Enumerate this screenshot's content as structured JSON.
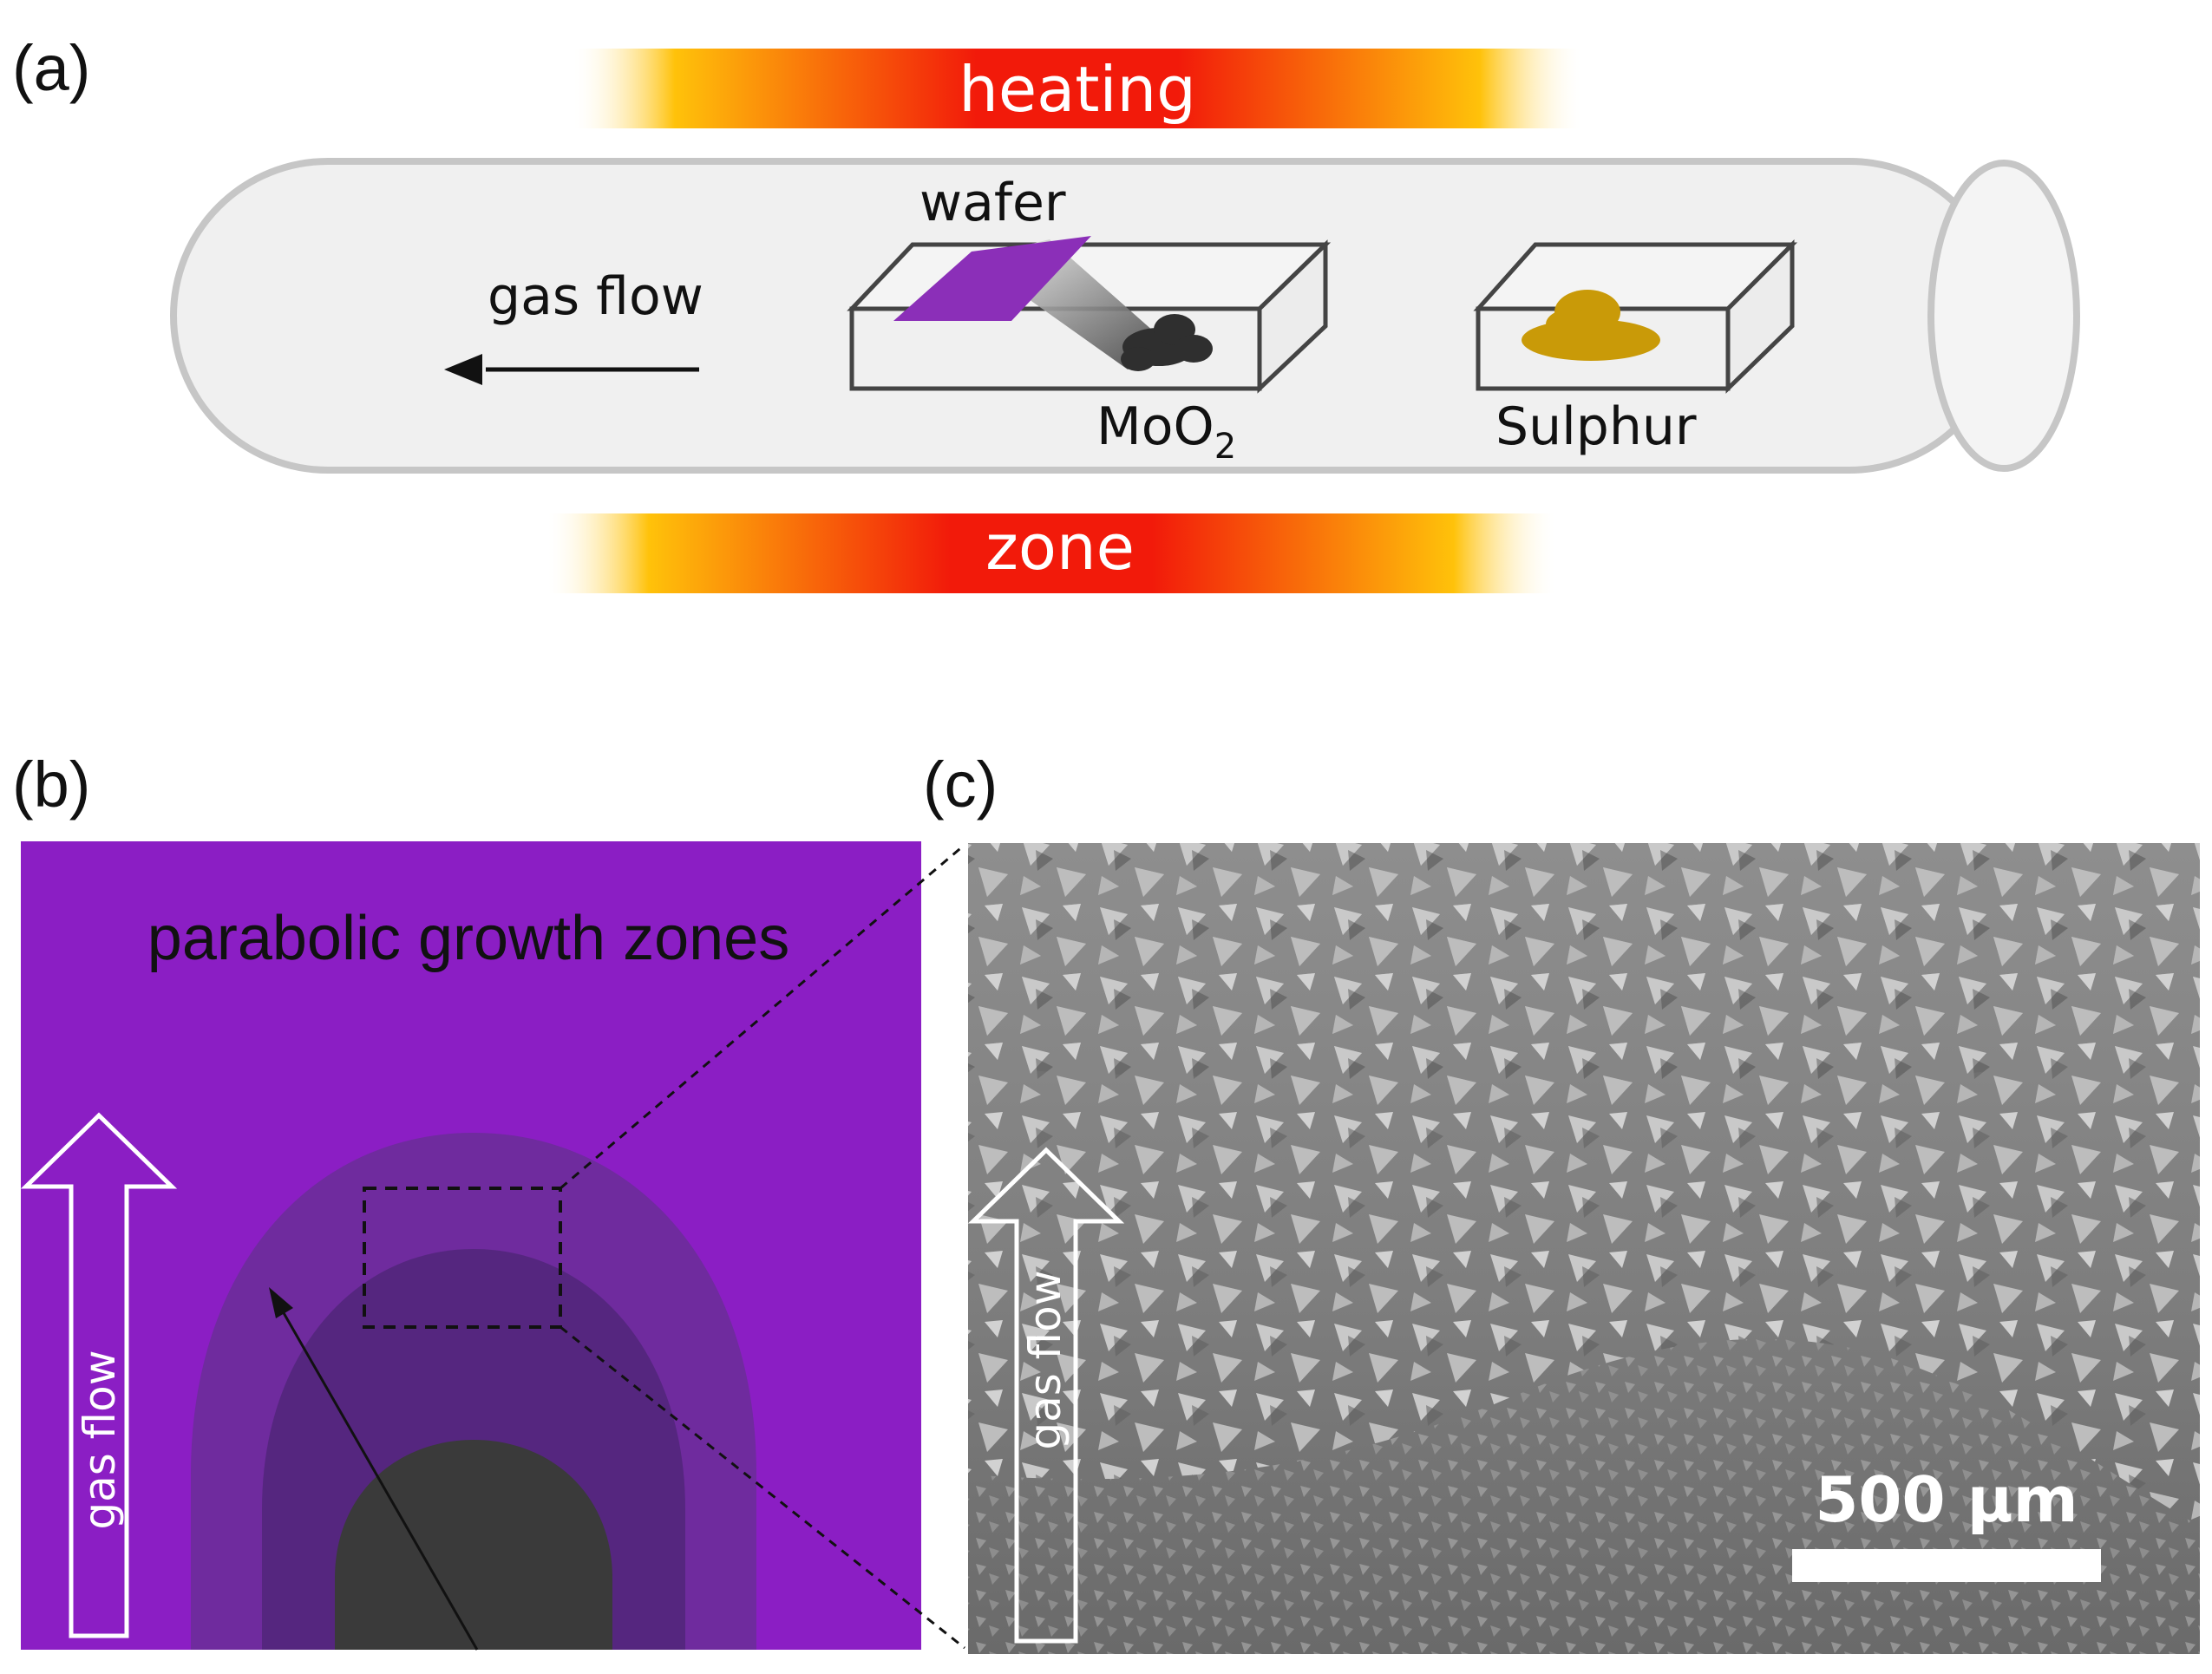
{
  "panels": {
    "a": {
      "label": "(a)",
      "heating_text": "heating",
      "zone_text": "zone",
      "wafer_label": "wafer",
      "gas_flow_label": "gas flow",
      "mo_label": "MoO",
      "mo_subscript": "2",
      "sulphur_label": "Sulphur"
    },
    "b": {
      "label": "(b)",
      "title": "parabolic growth zones",
      "gas_flow_label": "gas flow"
    },
    "c": {
      "label": "(c)",
      "gas_flow_label": "gas flow",
      "scale_bar_label": "500 µm"
    }
  },
  "colors": {
    "wafer_purple": "#8b1ec4",
    "zone_light": "#6f2b9e",
    "zone_mid": "#55267f",
    "zone_core": "#3a3a3a",
    "sulphur": "#c99a08",
    "heat_center": "#f21a0a",
    "heat_edge": "#ffc20a"
  }
}
